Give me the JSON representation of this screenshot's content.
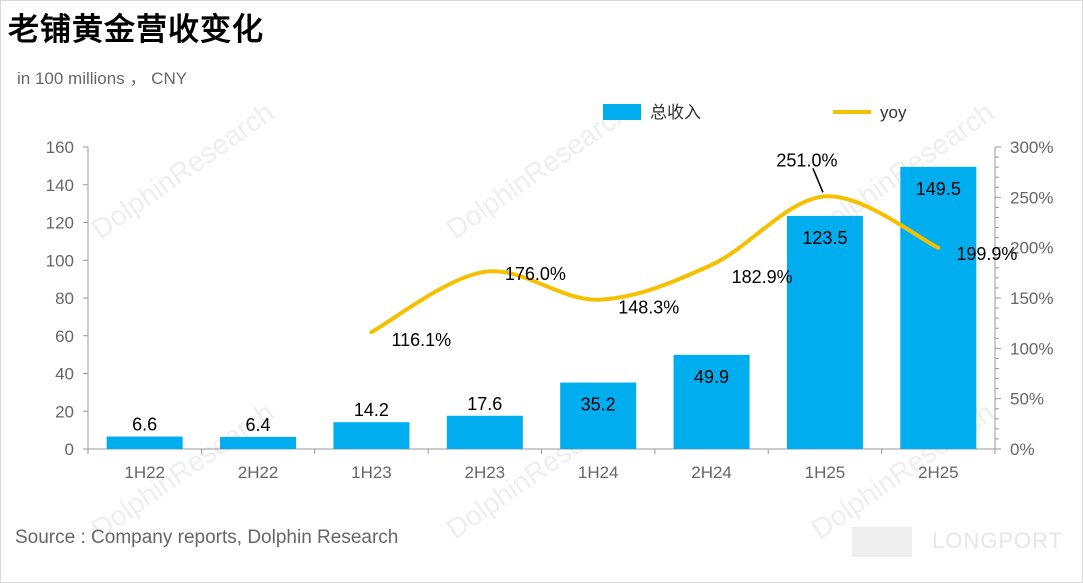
{
  "title": "老铺黄金营收变化",
  "unit_label": "in 100 millions ， CNY",
  "source": "Source : Company reports, Dolphin Research",
  "logo_text": "LONGPORT",
  "watermark": "DolphinResearch",
  "colors": {
    "bar": "#00aeef",
    "line": "#f5c000",
    "axis": "#999999"
  },
  "chart_data": {
    "type": "bar",
    "categories": [
      "1H22",
      "2H22",
      "1H23",
      "2H23",
      "1H24",
      "2H24",
      "1H25",
      "2H25"
    ],
    "series": [
      {
        "name": "总收入",
        "type": "bar",
        "axis": "left",
        "values": [
          6.6,
          6.4,
          14.2,
          17.6,
          35.2,
          49.9,
          123.5,
          149.5
        ],
        "labels": [
          "6.6",
          "6.4",
          "14.2",
          "17.6",
          "35.2",
          "49.9",
          "123.5",
          "149.5"
        ]
      },
      {
        "name": "yoy",
        "type": "line",
        "axis": "right",
        "smooth": true,
        "values": [
          null,
          null,
          116.1,
          176.0,
          148.3,
          182.9,
          251.0,
          199.9
        ],
        "labels": [
          "",
          "",
          "116.1%",
          "176.0%",
          "148.3%",
          "182.9%",
          "251.0%",
          "199.9%"
        ]
      }
    ],
    "y_left": {
      "range": [
        0,
        160
      ],
      "ticks": [
        "0",
        "20",
        "40",
        "60",
        "80",
        "100",
        "120",
        "140",
        "160"
      ]
    },
    "y_right": {
      "range": [
        0,
        300
      ],
      "ticks": [
        "0%",
        "50%",
        "100%",
        "150%",
        "200%",
        "250%",
        "300%"
      ]
    },
    "grid": false,
    "legend": "top-right"
  }
}
